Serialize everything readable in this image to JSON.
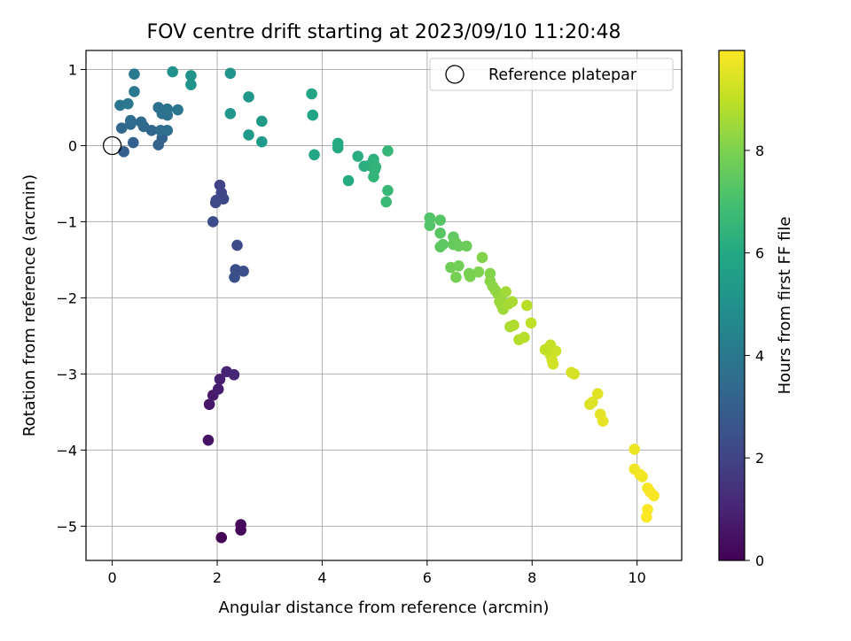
{
  "chart_data": {
    "type": "scatter",
    "title": "FOV centre drift starting at 2023/09/10 11:20:48",
    "xlabel": "Angular distance from reference (arcmin)",
    "ylabel": "Rotation from reference (arcmin)",
    "xlim": [
      -0.5,
      10.85
    ],
    "ylim": [
      -5.45,
      1.25
    ],
    "xticks": [
      0,
      2,
      4,
      6,
      8,
      10
    ],
    "yticks": [
      1,
      0,
      -1,
      -2,
      -3,
      -4,
      -5
    ],
    "grid": true,
    "legend": {
      "placement": "top-right",
      "entries": [
        "Reference platepar"
      ]
    },
    "reference_point": {
      "label": "Reference platepar",
      "x": 0,
      "y": 0
    },
    "colorbar": {
      "label": "Hours from first FF file",
      "colormap": "viridis",
      "range": [
        0,
        9.95
      ],
      "ticks": [
        0,
        2,
        4,
        6,
        8
      ]
    },
    "series": [
      {
        "points": [
          [
            2.08,
            -5.15,
            0.1
          ],
          [
            2.45,
            -5.05,
            0.2
          ],
          [
            2.45,
            -4.98,
            0.25
          ],
          [
            1.83,
            -3.87,
            0.5
          ],
          [
            1.85,
            -3.4,
            0.6
          ],
          [
            1.92,
            -3.28,
            0.7
          ],
          [
            2.02,
            -3.2,
            0.8
          ],
          [
            2.05,
            -3.07,
            0.9
          ],
          [
            2.18,
            -2.97,
            1.0
          ],
          [
            2.32,
            -3.01,
            1.1
          ],
          [
            2.05,
            -0.52,
            2.0
          ],
          [
            2.08,
            -0.62,
            2.05
          ],
          [
            2.12,
            -0.7,
            2.1
          ],
          [
            1.98,
            -0.72,
            2.15
          ],
          [
            1.97,
            -0.75,
            2.2
          ],
          [
            1.92,
            -1.0,
            2.25
          ],
          [
            2.38,
            -1.31,
            2.3
          ],
          [
            2.35,
            -1.63,
            2.35
          ],
          [
            2.5,
            -1.65,
            2.4
          ],
          [
            2.33,
            -1.73,
            2.45
          ],
          [
            0.22,
            -0.08,
            3.0
          ],
          [
            0.4,
            0.04,
            3.05
          ],
          [
            0.88,
            0.01,
            3.1
          ],
          [
            0.95,
            0.1,
            3.15
          ],
          [
            0.98,
            0.18,
            3.2
          ],
          [
            0.75,
            0.2,
            3.25
          ],
          [
            0.6,
            0.25,
            3.3
          ],
          [
            0.18,
            0.23,
            3.35
          ],
          [
            0.35,
            0.28,
            3.4
          ],
          [
            0.55,
            0.31,
            3.45
          ],
          [
            0.35,
            0.33,
            3.5
          ],
          [
            0.92,
            0.2,
            3.55
          ],
          [
            1.05,
            0.2,
            3.6
          ],
          [
            0.95,
            0.42,
            3.65
          ],
          [
            0.88,
            0.5,
            3.7
          ],
          [
            1.05,
            0.4,
            3.75
          ],
          [
            1.05,
            0.48,
            3.8
          ],
          [
            1.25,
            0.47,
            3.85
          ],
          [
            0.15,
            0.53,
            3.9
          ],
          [
            0.3,
            0.55,
            3.95
          ],
          [
            0.42,
            0.71,
            4.0
          ],
          [
            0.42,
            0.94,
            4.05
          ],
          [
            1.15,
            0.97,
            5.0
          ],
          [
            1.5,
            0.92,
            5.05
          ],
          [
            1.5,
            0.8,
            5.1
          ],
          [
            2.25,
            0.95,
            5.15
          ],
          [
            2.25,
            0.42,
            5.2
          ],
          [
            2.6,
            0.64,
            5.25
          ],
          [
            2.85,
            0.32,
            5.3
          ],
          [
            2.6,
            0.14,
            5.35
          ],
          [
            2.85,
            0.05,
            5.4
          ],
          [
            3.8,
            0.68,
            5.8
          ],
          [
            3.82,
            0.4,
            5.85
          ],
          [
            3.85,
            -0.12,
            5.9
          ],
          [
            4.3,
            0.03,
            6.0
          ],
          [
            4.3,
            -0.03,
            6.05
          ],
          [
            4.5,
            -0.46,
            6.1
          ],
          [
            4.68,
            -0.14,
            6.15
          ],
          [
            4.8,
            -0.27,
            6.2
          ],
          [
            4.9,
            -0.26,
            6.25
          ],
          [
            4.98,
            -0.18,
            6.3
          ],
          [
            4.98,
            -0.23,
            6.35
          ],
          [
            5.02,
            -0.28,
            6.4
          ],
          [
            5.0,
            -0.32,
            6.45
          ],
          [
            4.98,
            -0.41,
            6.5
          ],
          [
            5.25,
            -0.07,
            6.55
          ],
          [
            5.25,
            -0.59,
            6.6
          ],
          [
            5.22,
            -0.74,
            6.65
          ],
          [
            6.05,
            -0.95,
            7.2
          ],
          [
            6.05,
            -1.05,
            7.25
          ],
          [
            6.25,
            -0.98,
            7.3
          ],
          [
            6.25,
            -1.15,
            7.35
          ],
          [
            6.25,
            -1.33,
            7.4
          ],
          [
            6.3,
            -1.3,
            7.45
          ],
          [
            6.5,
            -1.2,
            7.5
          ],
          [
            6.5,
            -1.3,
            7.55
          ],
          [
            6.55,
            -1.28,
            7.6
          ],
          [
            6.6,
            -1.32,
            7.65
          ],
          [
            6.75,
            -1.32,
            7.7
          ],
          [
            6.45,
            -1.6,
            7.75
          ],
          [
            6.6,
            -1.58,
            7.8
          ],
          [
            6.55,
            -1.73,
            7.85
          ],
          [
            6.8,
            -1.68,
            7.9
          ],
          [
            6.82,
            -1.72,
            7.95
          ],
          [
            6.98,
            -1.66,
            8.0
          ],
          [
            7.05,
            -1.47,
            8.05
          ],
          [
            7.2,
            -1.68,
            8.1
          ],
          [
            7.2,
            -1.78,
            8.15
          ],
          [
            7.25,
            -1.85,
            8.2
          ],
          [
            7.3,
            -1.9,
            8.25
          ],
          [
            7.35,
            -1.95,
            8.3
          ],
          [
            7.4,
            -2.0,
            8.35
          ],
          [
            7.38,
            -2.05,
            8.4
          ],
          [
            7.42,
            -2.1,
            8.45
          ],
          [
            7.45,
            -2.15,
            8.5
          ],
          [
            7.5,
            -1.92,
            8.55
          ],
          [
            7.55,
            -2.08,
            8.6
          ],
          [
            7.62,
            -2.05,
            8.65
          ],
          [
            7.58,
            -2.38,
            8.7
          ],
          [
            7.65,
            -2.36,
            8.75
          ],
          [
            7.75,
            -2.55,
            8.8
          ],
          [
            7.85,
            -2.52,
            8.85
          ],
          [
            7.9,
            -2.1,
            8.9
          ],
          [
            7.98,
            -2.33,
            8.95
          ],
          [
            8.25,
            -2.68,
            9.0
          ],
          [
            8.35,
            -2.62,
            9.05
          ],
          [
            8.35,
            -2.75,
            9.1
          ],
          [
            8.45,
            -2.7,
            9.15
          ],
          [
            8.38,
            -2.82,
            9.2
          ],
          [
            8.4,
            -2.87,
            9.25
          ],
          [
            8.75,
            -2.98,
            9.3
          ],
          [
            8.8,
            -3.0,
            9.35
          ],
          [
            9.1,
            -3.4,
            9.4
          ],
          [
            9.15,
            -3.37,
            9.45
          ],
          [
            9.25,
            -3.26,
            9.5
          ],
          [
            9.3,
            -3.53,
            9.55
          ],
          [
            9.35,
            -3.62,
            9.6
          ],
          [
            9.95,
            -3.99,
            9.7
          ],
          [
            9.95,
            -4.25,
            9.75
          ],
          [
            10.05,
            -4.32,
            9.78
          ],
          [
            10.1,
            -4.35,
            9.8
          ],
          [
            10.2,
            -4.5,
            9.83
          ],
          [
            10.25,
            -4.55,
            9.86
          ],
          [
            10.32,
            -4.6,
            9.88
          ],
          [
            10.2,
            -4.78,
            9.9
          ],
          [
            10.18,
            -4.88,
            9.93
          ]
        ]
      }
    ]
  }
}
